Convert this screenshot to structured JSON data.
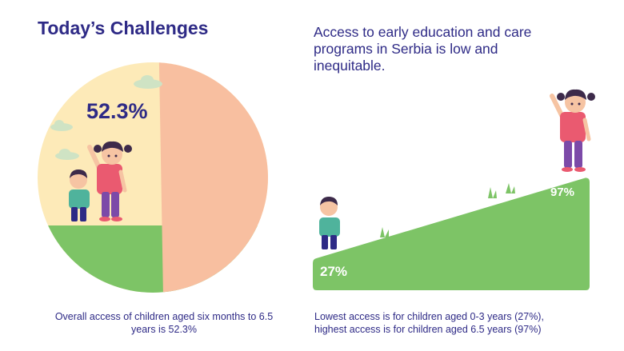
{
  "title": "Today’s Challenges",
  "heading": "Access to early education and care programs in Serbia is low and inequitable.",
  "left_caption": "Overall access of children aged six months to 6.5 years is 52.3%",
  "right_caption_line1": "Lowest access is for children aged 0-3 years (27%),",
  "right_caption_line2": "highest access is for children aged 6.5 years (97%)",
  "pie": {
    "label": "52.3%",
    "value": 52.3
  },
  "slope": {
    "low_label": "27%",
    "low_value": 27,
    "high_label": "97%",
    "high_value": 97
  },
  "colors": {
    "navy": "#2e2a86",
    "peach": "#f8bfa0",
    "cream": "#fdeab8",
    "green": "#7dc466",
    "cloud": "#cfe3c4",
    "pink": "#ea5a70",
    "purple": "#7c4aa8",
    "teal": "#4fb39c"
  },
  "icons": [
    "cloud-icon",
    "girl-waving-illustration",
    "boy-illustration",
    "grass-icon"
  ]
}
